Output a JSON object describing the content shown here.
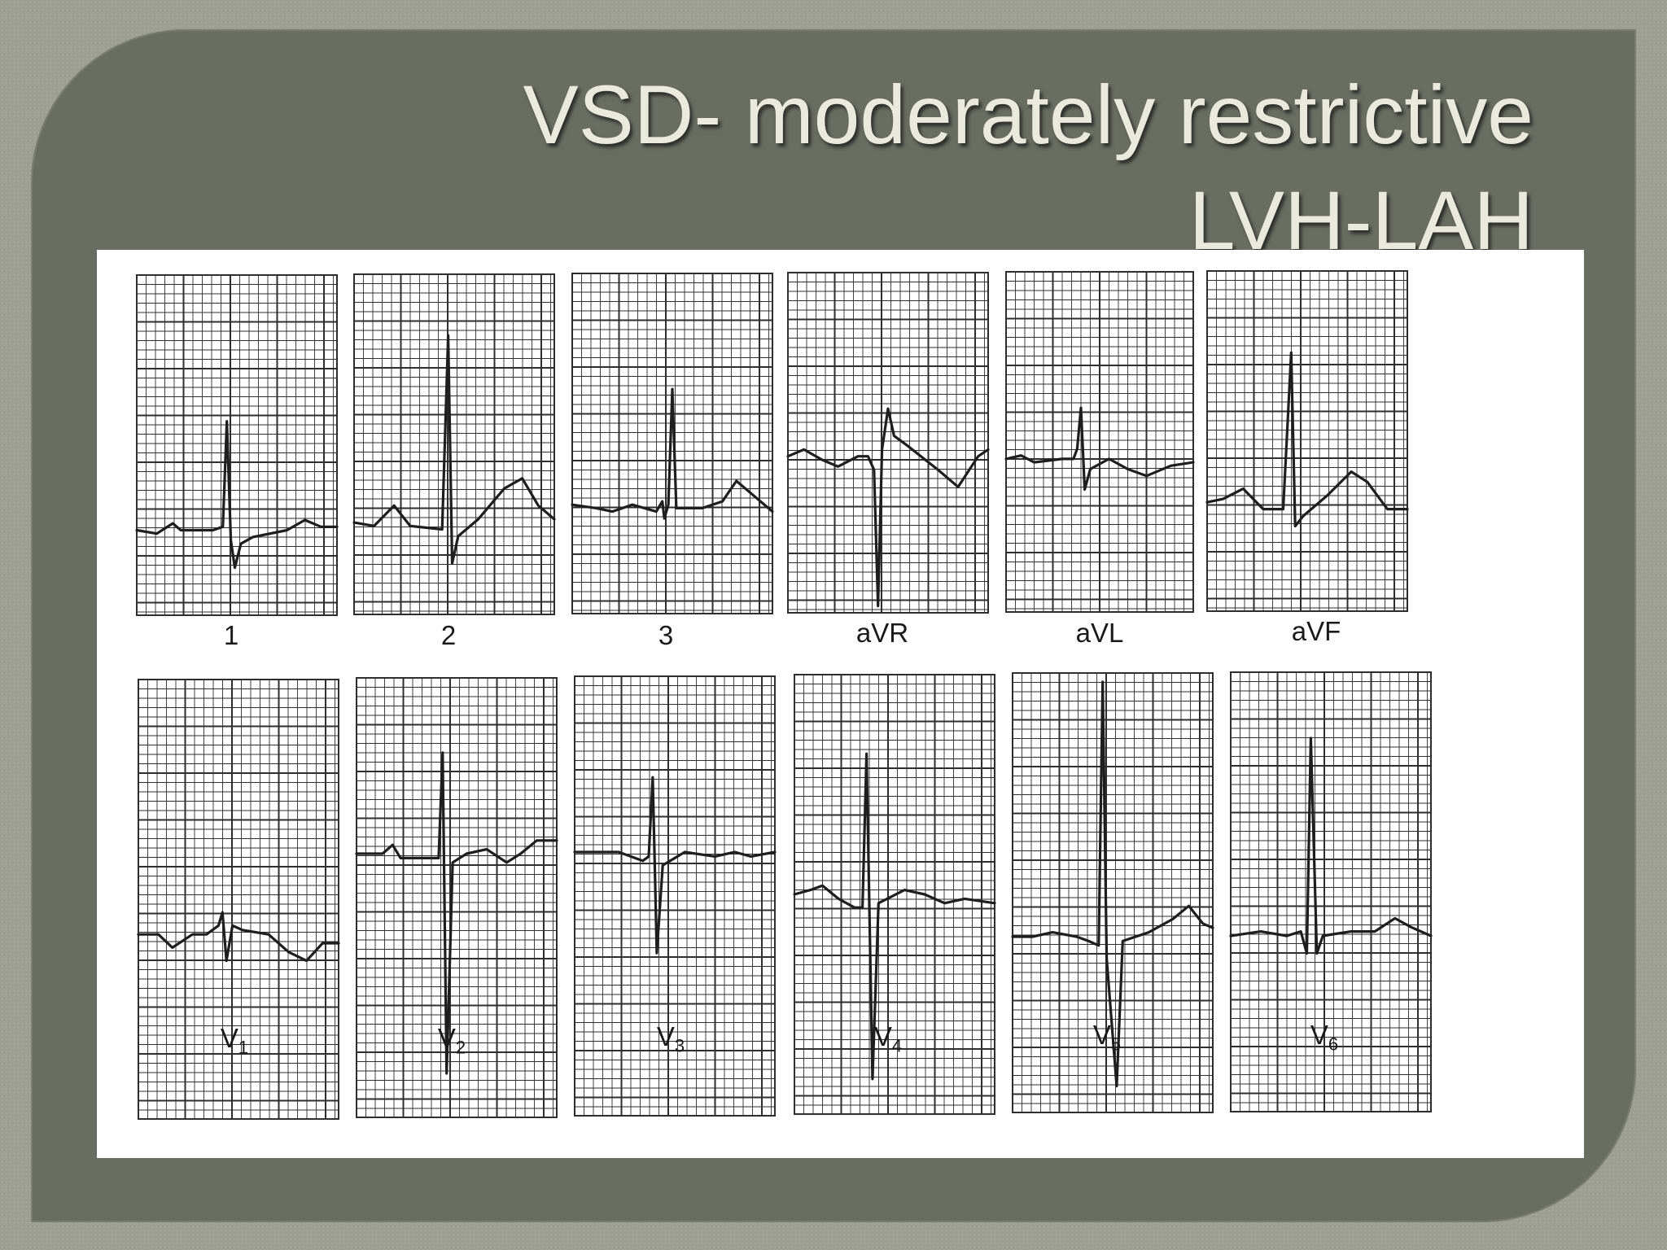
{
  "title": {
    "line1": "VSD- moderately restrictive",
    "line2": "LVH-LAH"
  },
  "colors": {
    "page_bg": "#9c9e93",
    "slide_bg": "#6a6d62",
    "title_text": "#e9e9dd",
    "panel_bg": "#ffffff",
    "trace": "#1e1e1e",
    "grid": "#2e2e2e"
  },
  "leads": {
    "limb": [
      {
        "label": "1",
        "sub": ""
      },
      {
        "label": "2",
        "sub": ""
      },
      {
        "label": "3",
        "sub": ""
      },
      {
        "label": "aVR",
        "sub": ""
      },
      {
        "label": "aVL",
        "sub": ""
      },
      {
        "label": "aVF",
        "sub": ""
      }
    ],
    "precordial": [
      {
        "label": "V",
        "sub": "1"
      },
      {
        "label": "V",
        "sub": "2"
      },
      {
        "label": "V",
        "sub": "3"
      },
      {
        "label": "V",
        "sub": "4"
      },
      {
        "label": "V",
        "sub": "5"
      },
      {
        "label": "V",
        "sub": "6"
      }
    ]
  }
}
